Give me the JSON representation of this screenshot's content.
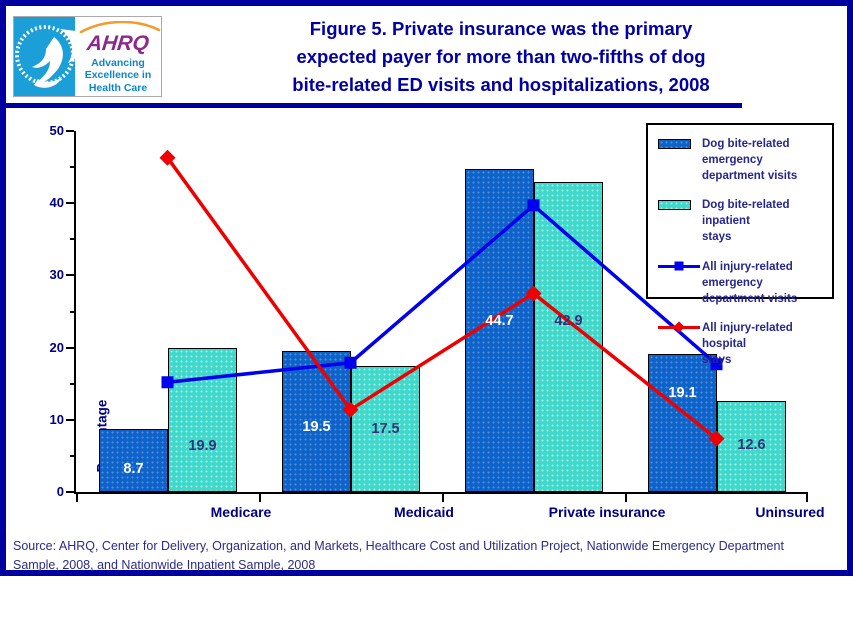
{
  "header": {
    "hhs_ring_text": "DEPARTMENT OF HEALTH & HUMAN SERVICES - USA",
    "ahrq_acronym": "AHRQ",
    "ahrq_tagline": "Advancing Excellence in Health Care"
  },
  "title": {
    "lines": [
      "Figure 5. Private insurance was the primary",
      "expected payer for more than two-fifths of dog",
      "bite-related ED visits and hospitalizations, 2008"
    ]
  },
  "chart_data": {
    "type": "combo (grouped bar + line)",
    "categories": [
      "Medicare",
      "Medicaid",
      "Private insurance",
      "Uninsured"
    ],
    "bar_series": [
      {
        "name": "Dog bite-related emergency department visits",
        "color": "#0F63C8",
        "dot_color": "#4E92DF",
        "label_color": "#FFFFFF",
        "values": [
          8.7,
          19.5,
          44.7,
          19.1
        ]
      },
      {
        "name": "Dog bite-related inpatient stays",
        "color": "#41D8CC",
        "dot_color": "#A5F0E9",
        "label_color": "#333377",
        "values": [
          19.9,
          17.5,
          42.9,
          12.6
        ]
      }
    ],
    "line_series": [
      {
        "name": "All injury-related emergency department visits",
        "color": "#0000EE",
        "marker": "square",
        "values": [
          15.2,
          17.9,
          39.7,
          17.7
        ]
      },
      {
        "name": "All injury-related hospital stays",
        "color": "#EE0000",
        "marker": "diamond",
        "values": [
          46.3,
          11.4,
          27.5,
          7.4
        ]
      }
    ],
    "title": "Figure 5. Private insurance was the primary expected payer for more than two-fifths of dog bite-related ED visits and hospitalizations, 2008",
    "xlabel": "",
    "ylabel": "Percentage",
    "ylim": [
      0,
      50
    ],
    "yticks": [
      0,
      10,
      20,
      30,
      40,
      50
    ],
    "grid": false,
    "legend_position": "upper right",
    "value_labels_shown_for": "bar series only"
  },
  "legend": {
    "items": [
      {
        "type": "bar",
        "series": 0,
        "lines": [
          "Dog bite-related emergency",
          "department visits"
        ]
      },
      {
        "type": "bar",
        "series": 1,
        "lines": [
          "Dog bite-related inpatient",
          "stays"
        ]
      },
      {
        "type": "line",
        "series": 0,
        "lines": [
          "All injury-related emergency",
          "department visits"
        ]
      },
      {
        "type": "line",
        "series": 1,
        "lines": [
          "All injury-related hospital",
          "stays"
        ]
      }
    ]
  },
  "source": {
    "lines": [
      "Source:  AHRQ, Center for Delivery, Organization, and Markets, Healthcare Cost and Utilization Project, Nationwide Emergency Department",
      "Sample, 2008, and Nationwide Inpatient Sample, 2008"
    ]
  }
}
